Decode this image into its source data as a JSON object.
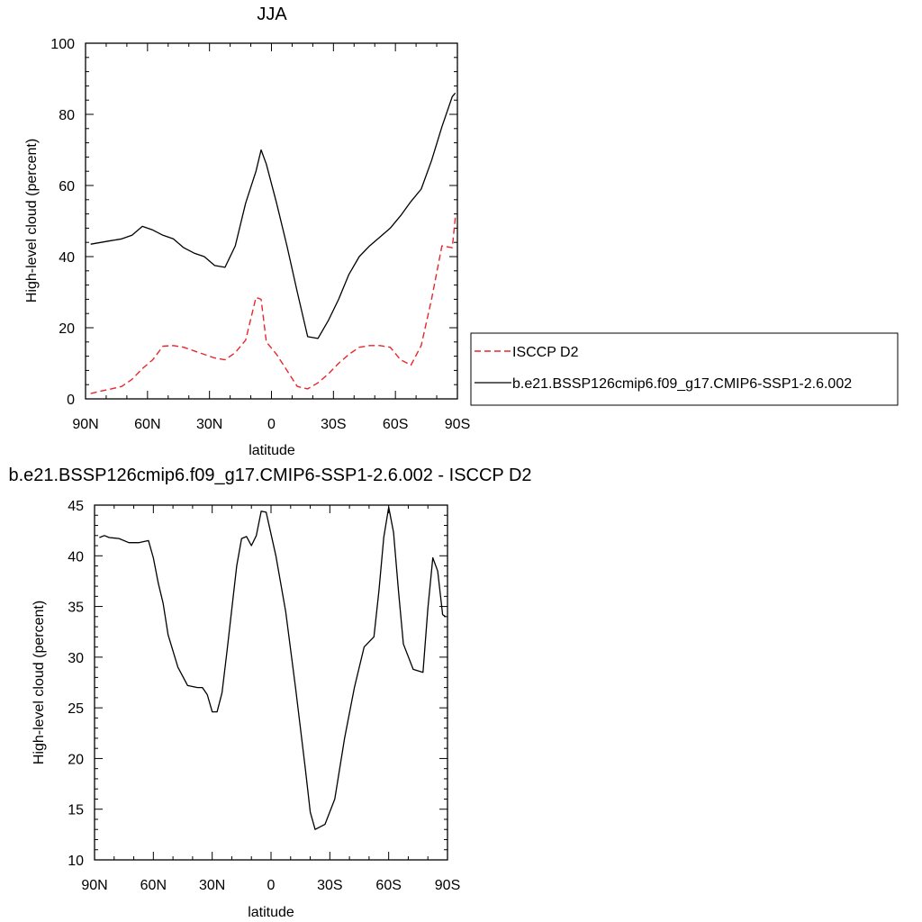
{
  "chart_data": [
    {
      "type": "line",
      "title": "JJA",
      "xlabel": "latitude",
      "ylabel": "High-level cloud (percent)",
      "xlim": [
        -90,
        90
      ],
      "ylim": [
        0,
        100
      ],
      "xticks": [
        {
          "value": -90,
          "label": "90N"
        },
        {
          "value": -60,
          "label": "60N"
        },
        {
          "value": -30,
          "label": "30N"
        },
        {
          "value": 0,
          "label": "0"
        },
        {
          "value": 30,
          "label": "30S"
        },
        {
          "value": 60,
          "label": "60S"
        },
        {
          "value": 90,
          "label": "90S"
        }
      ],
      "yticks": [
        0,
        20,
        40,
        60,
        80,
        100
      ],
      "legend_position": "right",
      "series": [
        {
          "name": "ISCCP D2",
          "color": "#e8262b",
          "dash": true,
          "x": [
            -87.5,
            -82.5,
            -77.5,
            -72.5,
            -67.5,
            -62.5,
            -57.5,
            -52.5,
            -47.5,
            -42.5,
            -37.5,
            -32.5,
            -27.5,
            -22.5,
            -17.5,
            -12.5,
            -7.5,
            -5,
            -2.5,
            2.5,
            7.5,
            12.5,
            17.5,
            22.5,
            27.5,
            32.5,
            37.5,
            42.5,
            47.5,
            52.5,
            57.5,
            62.5,
            67.5,
            72.5,
            77.5,
            82.5,
            87.5,
            89
          ],
          "values": [
            1.5,
            2.2,
            2.8,
            3.5,
            5.5,
            8.5,
            11,
            14.8,
            15,
            14.5,
            13.5,
            12.5,
            11.5,
            11,
            13,
            16.5,
            28.5,
            28,
            16,
            12.5,
            8,
            3.5,
            2.8,
            4.5,
            7,
            10,
            12.5,
            14.5,
            15,
            15,
            14.5,
            11,
            9.5,
            15,
            28,
            43,
            42.5,
            51
          ]
        },
        {
          "name": "b.e21.BSSP126cmip6.f09_g17.CMIP6-SSP1-2.6.002",
          "color": "#000000",
          "dash": false,
          "x": [
            -87.5,
            -82.5,
            -77.5,
            -72.5,
            -67.5,
            -62.5,
            -57.5,
            -52.5,
            -47.5,
            -42.5,
            -37.5,
            -32.5,
            -27.5,
            -22.5,
            -17.5,
            -12.5,
            -7.5,
            -5,
            -2.5,
            2.5,
            7.5,
            12.5,
            17.5,
            22.5,
            27.5,
            32.5,
            37.5,
            42.5,
            47.5,
            52.5,
            57.5,
            62.5,
            67.5,
            72.5,
            77.5,
            82.5,
            87.5,
            89
          ],
          "values": [
            43.5,
            44,
            44.5,
            45,
            46,
            48.5,
            47.5,
            46,
            45,
            42.5,
            41,
            40,
            37.5,
            37,
            43,
            55,
            64,
            70,
            66,
            55,
            43,
            30,
            17.5,
            17,
            22,
            28,
            35,
            40,
            43,
            45.5,
            48,
            51.5,
            55.5,
            59,
            67,
            76.5,
            85,
            86
          ]
        }
      ]
    },
    {
      "type": "line",
      "title": "b.e21.BSSP126cmip6.f09_g17.CMIP6-SSP1-2.6.002 - ISCCP D2",
      "xlabel": "latitude",
      "ylabel": "High-level cloud (percent)",
      "xlim": [
        -90,
        90
      ],
      "ylim": [
        10,
        45
      ],
      "xticks": [
        {
          "value": -90,
          "label": "90N"
        },
        {
          "value": -60,
          "label": "60N"
        },
        {
          "value": -30,
          "label": "30N"
        },
        {
          "value": 0,
          "label": "0"
        },
        {
          "value": 30,
          "label": "30S"
        },
        {
          "value": 60,
          "label": "60S"
        },
        {
          "value": 90,
          "label": "90S"
        }
      ],
      "yticks": [
        10,
        15,
        20,
        25,
        30,
        35,
        40,
        45
      ],
      "series": [
        {
          "color": "#000000",
          "dash": false,
          "x": [
            -87.5,
            -85,
            -82.5,
            -77.5,
            -72.5,
            -67.5,
            -62.5,
            -60,
            -57.5,
            -55,
            -52.5,
            -47.5,
            -42.5,
            -37.5,
            -35,
            -32.5,
            -30,
            -27.5,
            -25,
            -22.5,
            -17.5,
            -15,
            -12.5,
            -10,
            -7.5,
            -5,
            -2.5,
            2.5,
            7.5,
            12.5,
            17.5,
            20,
            22.5,
            27.5,
            32.5,
            37.5,
            42.5,
            47.5,
            52.5,
            55,
            57.5,
            60,
            62.5,
            65,
            67.5,
            72.5,
            77.5,
            80,
            82.5,
            85,
            87.5,
            89
          ],
          "values": [
            41.8,
            42,
            41.8,
            41.7,
            41.3,
            41.3,
            41.5,
            39.8,
            37.3,
            35.3,
            32.2,
            29,
            27.2,
            27,
            27,
            26.3,
            24.6,
            24.6,
            26.5,
            30.5,
            39,
            41.7,
            41.9,
            41,
            42,
            44.4,
            44.3,
            40,
            34.5,
            27,
            19,
            14.7,
            13,
            13.5,
            16,
            22,
            27,
            31,
            32,
            36.5,
            41.8,
            44.8,
            42.3,
            36.5,
            31.3,
            28.8,
            28.5,
            34.8,
            39.8,
            38.5,
            34.2,
            34
          ]
        }
      ]
    }
  ]
}
